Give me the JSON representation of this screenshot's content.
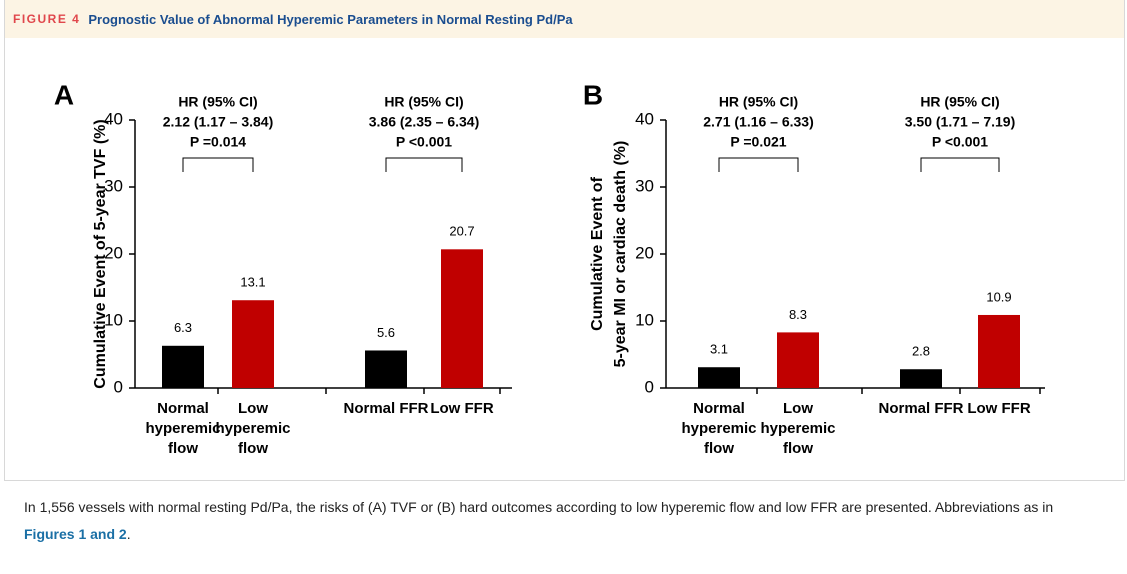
{
  "figure": {
    "label": "FIGURE 4",
    "title": "Prognostic Value of Abnormal Hyperemic Parameters in Normal Resting Pd/Pa"
  },
  "chart_data": [
    {
      "type": "bar",
      "panel": "A",
      "ylabel": [
        "Cumulative Event of 5-year TVF (%)"
      ],
      "categories": [
        [
          "Normal",
          "hyperemic",
          "flow"
        ],
        [
          "Low",
          "hyperemic",
          "flow"
        ],
        [
          "Normal  FFR"
        ],
        [
          "Low FFR"
        ]
      ],
      "values": [
        6.3,
        13.1,
        5.6,
        20.7
      ],
      "colors": [
        "#000000",
        "#c00000",
        "#000000",
        "#c00000"
      ],
      "ylim": [
        0,
        40
      ],
      "yticks": [
        0,
        10,
        20,
        30,
        40
      ],
      "annotations": [
        [
          "HR (95% CI)",
          "2.12 (1.17 – 3.84)",
          "P =0.014"
        ],
        [
          "HR (95% CI)",
          "3.86 (2.35 – 6.34)",
          "P <0.001"
        ]
      ]
    },
    {
      "type": "bar",
      "panel": "B",
      "ylabel": [
        "Cumulative Event of",
        "5-year MI or cardiac death (%)"
      ],
      "categories": [
        [
          "Normal",
          "hyperemic",
          "flow"
        ],
        [
          "Low",
          "hyperemic",
          "flow"
        ],
        [
          "Normal  FFR"
        ],
        [
          "Low FFR"
        ]
      ],
      "values": [
        3.1,
        8.3,
        2.8,
        10.9
      ],
      "colors": [
        "#000000",
        "#c00000",
        "#000000",
        "#c00000"
      ],
      "ylim": [
        0,
        40
      ],
      "yticks": [
        0,
        10,
        20,
        30,
        40
      ],
      "annotations": [
        [
          "HR (95% CI)",
          "2.71 (1.16 – 6.33)",
          "P =0.021"
        ],
        [
          "HR (95% CI)",
          "3.50 (1.71 – 7.19)",
          "P <0.001"
        ]
      ]
    }
  ],
  "caption": {
    "text": "In 1,556 vessels with normal resting Pd/Pa, the risks of (A) TVF or (B) hard outcomes according to low hyperemic flow and low FFR are presented. Abbreviations as in ",
    "link": "Figures 1 and 2",
    "end": "."
  }
}
